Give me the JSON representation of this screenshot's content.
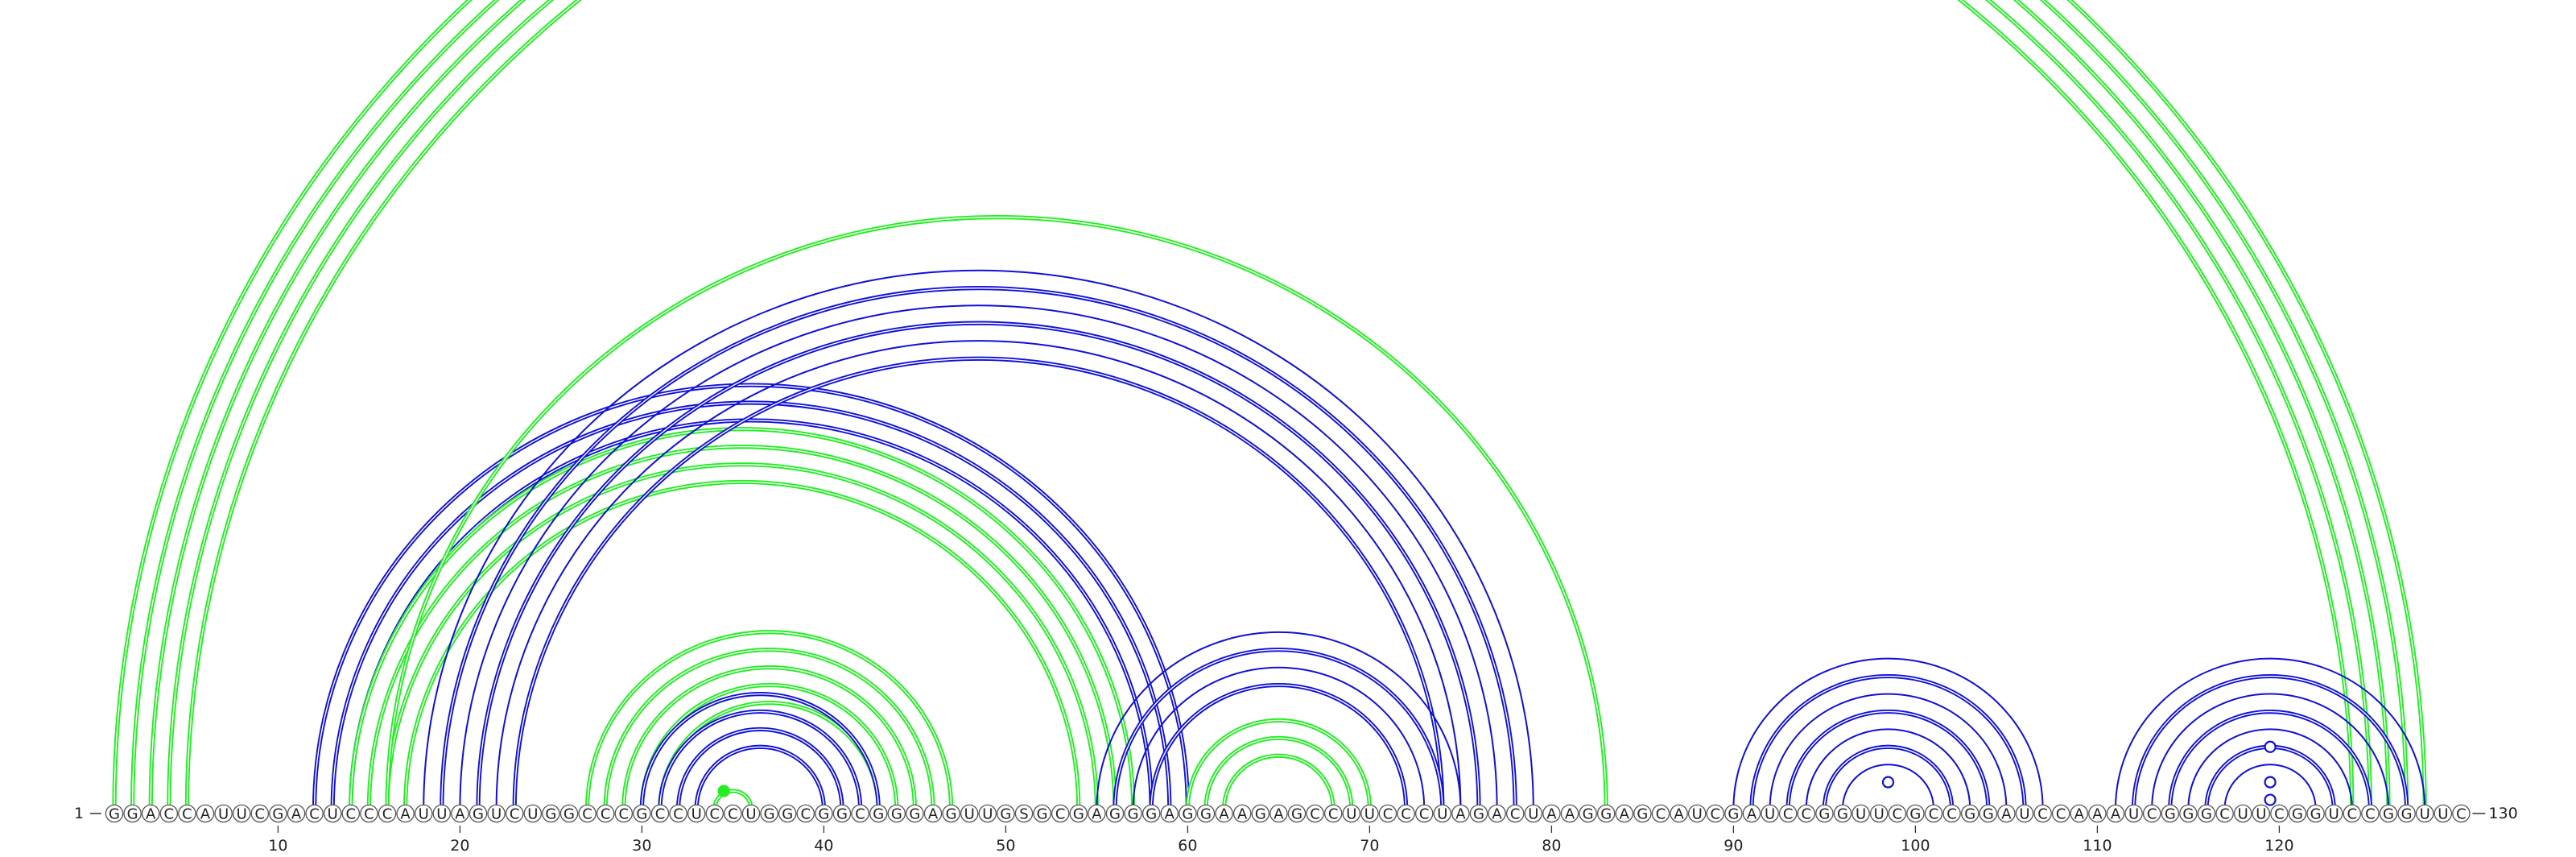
{
  "sequence": "GGACCAUUCGACUCCCAUUAGUCUGGCCCGCCUCCUGGCGGCGGGAGUUGSGCGAGGGAGGAAGAGCCUUCCCUAGACUAAGGAGCAUCGAUCCGGUUCGCCGGAUCCAAAUCGGGCUUCGGUCCGGUUC",
  "sequence_length": 130,
  "start_label": "1",
  "end_label": "130",
  "tick_labels": [
    "10",
    "20",
    "30",
    "40",
    "50",
    "60",
    "70",
    "80",
    "90",
    "100",
    "110",
    "120"
  ],
  "colors": {
    "green": "#22ee22",
    "blue": "#1010d8"
  },
  "arc_groups": [
    {
      "color": "green",
      "i": 1,
      "j": 128,
      "k": 5,
      "strand": "double"
    },
    {
      "color": "blue",
      "i": 12,
      "j": 60,
      "k": 3,
      "strand": "double"
    },
    {
      "color": "green",
      "i": 14,
      "j": 57,
      "k": 4,
      "strand": "double"
    },
    {
      "color": "blue",
      "i": 18,
      "j": 79,
      "k": 6,
      "strand": "mixed"
    },
    {
      "color": "green",
      "i": 27,
      "j": 47,
      "k": 5,
      "strand": "double"
    },
    {
      "color": "blue",
      "i": 30,
      "j": 43,
      "k": 4,
      "strand": "double"
    },
    {
      "color": "green",
      "i": 34,
      "j": 36,
      "k": 1,
      "strand": "double"
    },
    {
      "color": "green",
      "i": 16,
      "j": 83,
      "k": 1,
      "strand": "double"
    },
    {
      "color": "blue",
      "i": 55,
      "j": 75,
      "k": 4,
      "strand": "mixed"
    },
    {
      "color": "green",
      "i": 60,
      "j": 70,
      "k": 3,
      "strand": "double"
    },
    {
      "color": "blue",
      "i": 90,
      "j": 107,
      "k": 7,
      "strand": "mixed"
    },
    {
      "color": "blue",
      "i": 111,
      "j": 128,
      "k": 7,
      "strand": "mixed"
    }
  ],
  "markers": [
    {
      "color": "green",
      "pos": 34.5,
      "arc_span": 2,
      "filled": true
    },
    {
      "color": "blue",
      "pos": 98.5,
      "arc_span": 3,
      "filled": false
    },
    {
      "color": "blue",
      "pos": 119.5,
      "arc_span": 7,
      "filled": false
    },
    {
      "color": "blue",
      "pos": 119.5,
      "arc_span": 3,
      "filled": false
    },
    {
      "color": "blue",
      "pos": 119.5,
      "arc_span": 1,
      "filled": false
    }
  ]
}
